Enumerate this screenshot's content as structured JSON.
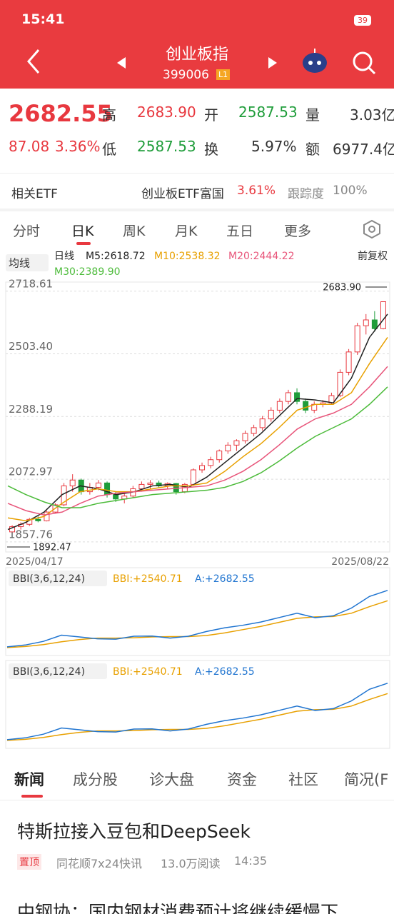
{
  "status": {
    "time": "15:41",
    "battery": "39"
  },
  "header": {
    "title": "创业板指",
    "code": "399006",
    "badge": "L1"
  },
  "quote": {
    "price": "2682.55",
    "change": "87.08",
    "pct": "3.36%",
    "high_label": "高",
    "high": "2683.90",
    "open_label": "开",
    "open": "2587.53",
    "vol_label": "量",
    "vol": "3.03亿",
    "low_label": "低",
    "low": "2587.53",
    "turn_label": "换",
    "turn": "5.97%",
    "amt_label": "额",
    "amt": "6977.4亿"
  },
  "etf": {
    "label": "相关ETF",
    "name": "创业板ETF富国",
    "pct": "3.61%",
    "track_label": "跟踪度",
    "track": "100%"
  },
  "tabs": [
    "分时",
    "日K",
    "周K",
    "月K",
    "五日",
    "更多"
  ],
  "chart_data": {
    "type": "candlestick",
    "ma_selector": "均线",
    "period": "日线",
    "adjust": "前复权",
    "x_labels": [
      "2025/04/17",
      "2025/08/22"
    ],
    "ylim": [
      1823,
      2750
    ],
    "yticks": [
      {
        "value": 1857.76,
        "label": "1857.76"
      },
      {
        "value": 2072.97,
        "label": "2072.97"
      },
      {
        "value": 2288.19,
        "label": "2288.19"
      },
      {
        "value": 2503.4,
        "label": "2503.40"
      },
      {
        "value": 2718.61,
        "label": "2718.61"
      }
    ],
    "max_label": "2683.90",
    "min_label": "1892.47",
    "candles": [
      [
        1892,
        1915,
        1892,
        1910
      ],
      [
        1910,
        1925,
        1900,
        1918
      ],
      [
        1918,
        1940,
        1912,
        1935
      ],
      [
        1935,
        1945,
        1925,
        1930
      ],
      [
        1930,
        1965,
        1928,
        1960
      ],
      [
        1960,
        1990,
        1955,
        1985
      ],
      [
        1985,
        2060,
        1980,
        2050
      ],
      [
        2050,
        2090,
        2030,
        2070
      ],
      [
        2070,
        2075,
        2020,
        2030
      ],
      [
        2030,
        2060,
        2020,
        2045
      ],
      [
        2045,
        2070,
        2035,
        2060
      ],
      [
        2060,
        2065,
        2010,
        2020
      ],
      [
        2020,
        2030,
        1995,
        2005
      ],
      [
        2005,
        2025,
        1990,
        2015
      ],
      [
        2015,
        2050,
        2010,
        2040
      ],
      [
        2040,
        2065,
        2030,
        2055
      ],
      [
        2055,
        2070,
        2040,
        2060
      ],
      [
        2060,
        2068,
        2045,
        2050
      ],
      [
        2050,
        2062,
        2040,
        2058
      ],
      [
        2058,
        2060,
        2020,
        2030
      ],
      [
        2030,
        2060,
        2025,
        2055
      ],
      [
        2055,
        2110,
        2050,
        2105
      ],
      [
        2105,
        2130,
        2095,
        2120
      ],
      [
        2120,
        2150,
        2110,
        2140
      ],
      [
        2140,
        2175,
        2130,
        2170
      ],
      [
        2170,
        2200,
        2160,
        2190
      ],
      [
        2190,
        2210,
        2170,
        2205
      ],
      [
        2205,
        2240,
        2195,
        2230
      ],
      [
        2230,
        2260,
        2220,
        2250
      ],
      [
        2250,
        2290,
        2240,
        2280
      ],
      [
        2280,
        2320,
        2270,
        2310
      ],
      [
        2310,
        2350,
        2300,
        2340
      ],
      [
        2340,
        2380,
        2330,
        2370
      ],
      [
        2370,
        2385,
        2330,
        2340
      ],
      [
        2340,
        2350,
        2300,
        2310
      ],
      [
        2310,
        2340,
        2300,
        2330
      ],
      [
        2330,
        2345,
        2320,
        2335
      ],
      [
        2335,
        2370,
        2330,
        2360
      ],
      [
        2360,
        2450,
        2355,
        2440
      ],
      [
        2440,
        2520,
        2430,
        2510
      ],
      [
        2510,
        2610,
        2500,
        2600
      ],
      [
        2600,
        2640,
        2570,
        2620
      ],
      [
        2620,
        2650,
        2580,
        2590
      ],
      [
        2590,
        2683.9,
        2587.53,
        2682.55
      ]
    ],
    "up_color": "#e8383f",
    "down_color": "#1f9d3a",
    "series": [
      {
        "name": "M5:2618.72",
        "color": "#222222",
        "values": [
          1900,
          1925,
          1960,
          2020,
          2050,
          2040,
          2020,
          2030,
          2050,
          2055,
          2045,
          2080,
          2130,
          2180,
          2230,
          2290,
          2350,
          2345,
          2335,
          2420,
          2560,
          2640
        ]
      },
      {
        "name": "M10:2538.32",
        "color": "#e8a000",
        "values": [
          1940,
          1930,
          1945,
          1990,
          2030,
          2040,
          2030,
          2030,
          2040,
          2050,
          2050,
          2060,
          2100,
          2150,
          2195,
          2250,
          2310,
          2330,
          2330,
          2370,
          2470,
          2560
        ]
      },
      {
        "name": "M20:2444.22",
        "color": "#e8557a",
        "values": [
          1990,
          1965,
          1950,
          1960,
          1990,
          2015,
          2025,
          2030,
          2035,
          2040,
          2045,
          2050,
          2070,
          2100,
          2140,
          2190,
          2245,
          2280,
          2300,
          2330,
          2390,
          2460
        ]
      },
      {
        "name": "M30:2389.90",
        "color": "#4cbb3a",
        "values": [
          2050,
          2020,
          1995,
          1975,
          1975,
          1990,
          2000,
          2010,
          2020,
          2025,
          2030,
          2035,
          2045,
          2065,
          2095,
          2135,
          2180,
          2220,
          2250,
          2280,
          2330,
          2390
        ]
      }
    ]
  },
  "indicators": [
    {
      "type": "line",
      "selector": "BBI(3,6,12,24)",
      "ylim": [
        1850,
        2720
      ],
      "series": [
        {
          "name": "BBI:+2540.71",
          "color": "#e8a000",
          "values": [
            1900,
            1915,
            1940,
            1980,
            2010,
            2030,
            2030,
            2035,
            2045,
            2050,
            2050,
            2065,
            2100,
            2145,
            2190,
            2245,
            2300,
            2320,
            2325,
            2370,
            2460,
            2540.71
          ]
        },
        {
          "name": "A:+2682.55",
          "color": "#1f74d0",
          "values": [
            1910,
            1935,
            1985,
            2070,
            2045,
            2020,
            2015,
            2055,
            2058,
            2030,
            2055,
            2120,
            2170,
            2205,
            2250,
            2310,
            2370,
            2310,
            2335,
            2440,
            2600,
            2682.55
          ]
        }
      ]
    },
    {
      "type": "line",
      "selector": "BBI(3,6,12,24)",
      "ylim": [
        1850,
        2720
      ],
      "series": [
        {
          "name": "BBI:+2540.71",
          "color": "#e8a000",
          "values": [
            1900,
            1915,
            1940,
            1980,
            2010,
            2030,
            2030,
            2035,
            2045,
            2050,
            2050,
            2065,
            2100,
            2145,
            2190,
            2245,
            2300,
            2320,
            2325,
            2370,
            2460,
            2540.71
          ]
        },
        {
          "name": "A:+2682.55",
          "color": "#1f74d0",
          "values": [
            1910,
            1935,
            1985,
            2070,
            2045,
            2020,
            2015,
            2055,
            2058,
            2030,
            2055,
            2120,
            2170,
            2205,
            2250,
            2310,
            2370,
            2310,
            2335,
            2440,
            2600,
            2682.55
          ]
        }
      ]
    }
  ],
  "news_tabs": [
    "新闻",
    "成分股",
    "诊大盘",
    "资金",
    "社区",
    "简况(F"
  ],
  "news": [
    {
      "title": "特斯拉接入豆包和DeepSeek",
      "tag": "置顶",
      "source": "同花顺7x24快讯",
      "reads": "13.0万阅读",
      "time": "14:35"
    }
  ],
  "next_headline": "中钢协：国内钢材消费预计将继续缓慢下"
}
